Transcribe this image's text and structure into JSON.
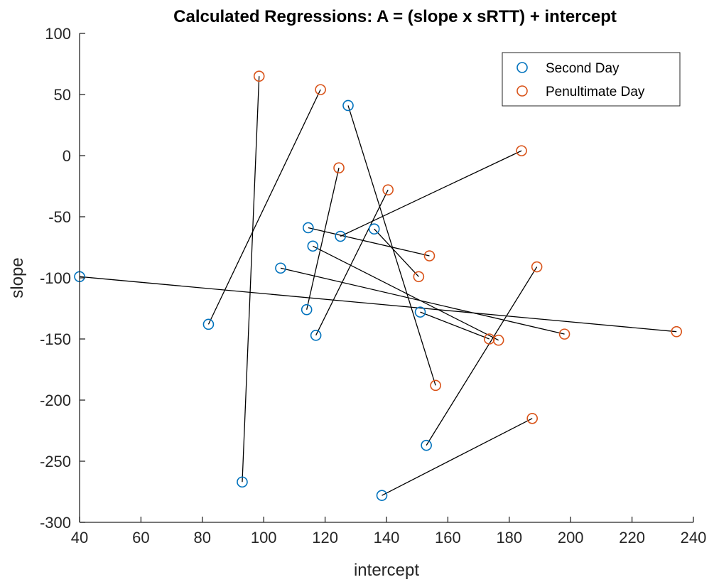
{
  "chart_data": {
    "type": "scatter",
    "title": "Calculated Regressions: A = (slope x sRTT) + intercept",
    "xlabel": "intercept",
    "ylabel": "slope",
    "xlim": [
      40,
      240
    ],
    "ylim": [
      -300,
      100
    ],
    "xticks": [
      40,
      60,
      80,
      100,
      120,
      140,
      160,
      180,
      200,
      220,
      240
    ],
    "yticks": [
      -300,
      -250,
      -200,
      -150,
      -100,
      -50,
      0,
      50,
      100
    ],
    "grid": false,
    "legend_position": "top-right",
    "series": [
      {
        "name": "Second Day",
        "color": "#0072BD",
        "marker": "circle-open",
        "points": [
          {
            "x": 40,
            "y": -99
          },
          {
            "x": 82,
            "y": -138
          },
          {
            "x": 93,
            "y": -267
          },
          {
            "x": 105.5,
            "y": -92
          },
          {
            "x": 114,
            "y": -126
          },
          {
            "x": 114.5,
            "y": -59
          },
          {
            "x": 116,
            "y": -74
          },
          {
            "x": 117,
            "y": -147
          },
          {
            "x": 125,
            "y": -66
          },
          {
            "x": 127.5,
            "y": 41
          },
          {
            "x": 136,
            "y": -60
          },
          {
            "x": 138.5,
            "y": -278
          },
          {
            "x": 151,
            "y": -128
          },
          {
            "x": 153,
            "y": -237
          }
        ]
      },
      {
        "name": "Penultimate Day",
        "color": "#D95319",
        "marker": "circle-open",
        "points": [
          {
            "x": 234.5,
            "y": -144
          },
          {
            "x": 118.5,
            "y": 54
          },
          {
            "x": 98.5,
            "y": 65
          },
          {
            "x": 198,
            "y": -146
          },
          {
            "x": 124.5,
            "y": -10
          },
          {
            "x": 154,
            "y": -82
          },
          {
            "x": 176.5,
            "y": -151
          },
          {
            "x": 140.5,
            "y": -28
          },
          {
            "x": 184,
            "y": 4
          },
          {
            "x": 156,
            "y": -188
          },
          {
            "x": 150.5,
            "y": -99
          },
          {
            "x": 187.5,
            "y": -215
          },
          {
            "x": 173.5,
            "y": -150
          },
          {
            "x": 189,
            "y": -91
          }
        ]
      }
    ],
    "connector_color": "#000000"
  }
}
